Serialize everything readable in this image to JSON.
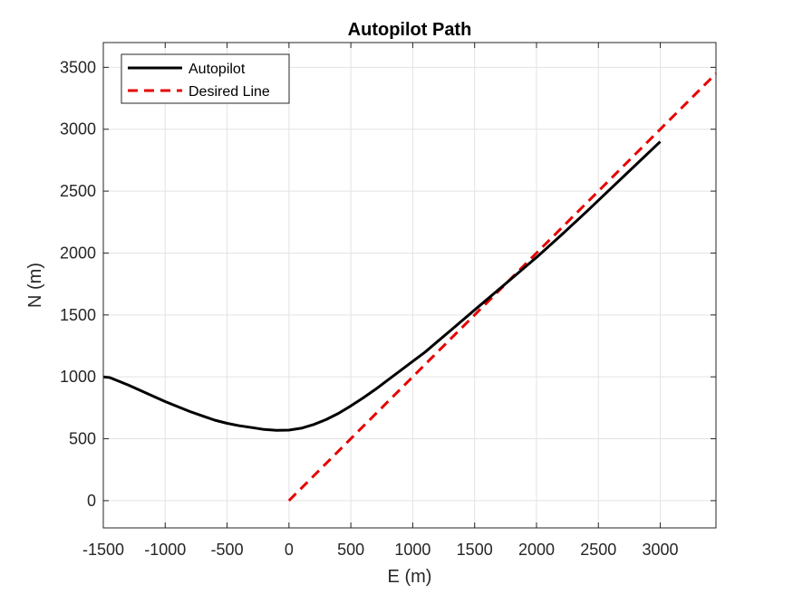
{
  "chart_data": {
    "type": "line",
    "title": "Autopilot Path",
    "xlabel": "E (m)",
    "ylabel": "N (m)",
    "xlim": [
      -1500,
      3450
    ],
    "ylim": [
      -220,
      3700
    ],
    "xticks": [
      -1500,
      -1000,
      -500,
      0,
      500,
      1000,
      1500,
      2000,
      2500,
      3000
    ],
    "yticks": [
      0,
      500,
      1000,
      1500,
      2000,
      2500,
      3000,
      3500
    ],
    "grid": true,
    "legend_position": "top-left",
    "series": [
      {
        "name": "Autopilot",
        "color": "#000000",
        "style": "solid",
        "x": [
          -1500,
          -1450,
          -1400,
          -1300,
          -1200,
          -1100,
          -1000,
          -900,
          -800,
          -700,
          -600,
          -500,
          -400,
          -300,
          -200,
          -100,
          0,
          100,
          200,
          300,
          400,
          500,
          600,
          700,
          800,
          900,
          1000,
          1100,
          1200,
          1300,
          1400,
          1500,
          1600,
          1700,
          1800,
          1900,
          2000,
          2200,
          2400,
          2600,
          2800,
          3000
        ],
        "y": [
          1000,
          995,
          975,
          935,
          890,
          845,
          800,
          760,
          720,
          685,
          650,
          625,
          605,
          590,
          575,
          568,
          570,
          585,
          615,
          655,
          705,
          765,
          830,
          900,
          975,
          1050,
          1125,
          1200,
          1285,
          1370,
          1455,
          1540,
          1625,
          1710,
          1795,
          1880,
          1965,
          2145,
          2330,
          2520,
          2710,
          2900
        ]
      },
      {
        "name": "Desired Line",
        "color": "#e60000",
        "style": "dashed",
        "x": [
          0,
          3450
        ],
        "y": [
          0,
          3450
        ]
      }
    ]
  }
}
